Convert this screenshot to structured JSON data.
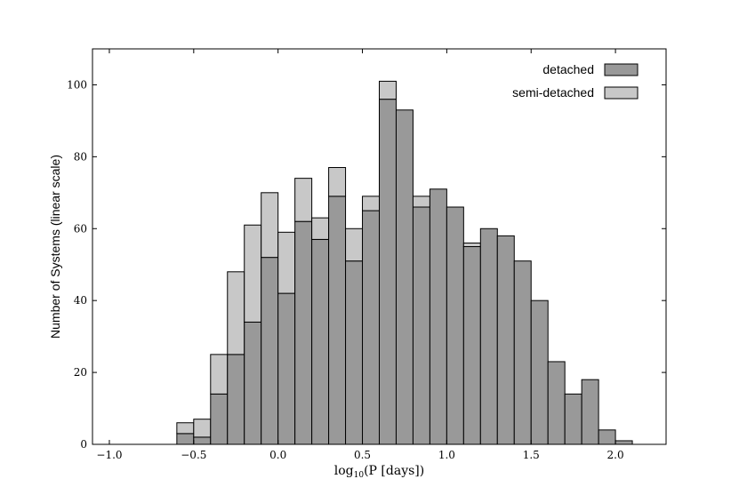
{
  "chart_data": {
    "type": "bar",
    "subtype": "stacked-histogram",
    "title": "",
    "xlabel": "log10(P [days])",
    "xlabel_parts": {
      "main": "log",
      "sub": "10",
      "arg": "(P [days])"
    },
    "ylabel": "Number of Systems (linear scale)",
    "xlim": [
      -1.1,
      2.3
    ],
    "ylim": [
      0,
      110
    ],
    "xticks": [
      -1.0,
      -0.5,
      0.0,
      0.5,
      1.0,
      1.5,
      2.0
    ],
    "xtick_labels": [
      "−1.0",
      "−0.5",
      "0.0",
      "0.5",
      "1.0",
      "1.5",
      "2.0"
    ],
    "yticks": [
      0,
      20,
      40,
      60,
      80,
      100
    ],
    "ytick_labels": [
      "0",
      "20",
      "40",
      "60",
      "80",
      "100"
    ],
    "grid": false,
    "legend_position": "top-right",
    "bin_width": 0.1,
    "bin_starts": [
      -0.6,
      -0.5,
      -0.4,
      -0.3,
      -0.2,
      -0.1,
      0.0,
      0.1,
      0.2,
      0.3,
      0.4,
      0.5,
      0.6,
      0.7,
      0.8,
      0.9,
      1.0,
      1.1,
      1.2,
      1.3,
      1.4,
      1.5,
      1.6,
      1.7,
      1.8,
      1.9,
      2.0
    ],
    "series": [
      {
        "name": "detached",
        "color": "#999999",
        "values": [
          3,
          2,
          14,
          25,
          34,
          52,
          42,
          62,
          57,
          69,
          51,
          65,
          96,
          93,
          66,
          71,
          66,
          55,
          60,
          58,
          51,
          40,
          23,
          14,
          18,
          4,
          1
        ]
      },
      {
        "name": "semi-detached",
        "color": "#c8c8c8",
        "values": [
          3,
          5,
          11,
          23,
          27,
          18,
          17,
          12,
          6,
          8,
          9,
          4,
          5,
          0,
          3,
          0,
          0,
          1,
          0,
          0,
          0,
          0,
          0,
          0,
          0,
          0,
          0
        ]
      }
    ]
  }
}
